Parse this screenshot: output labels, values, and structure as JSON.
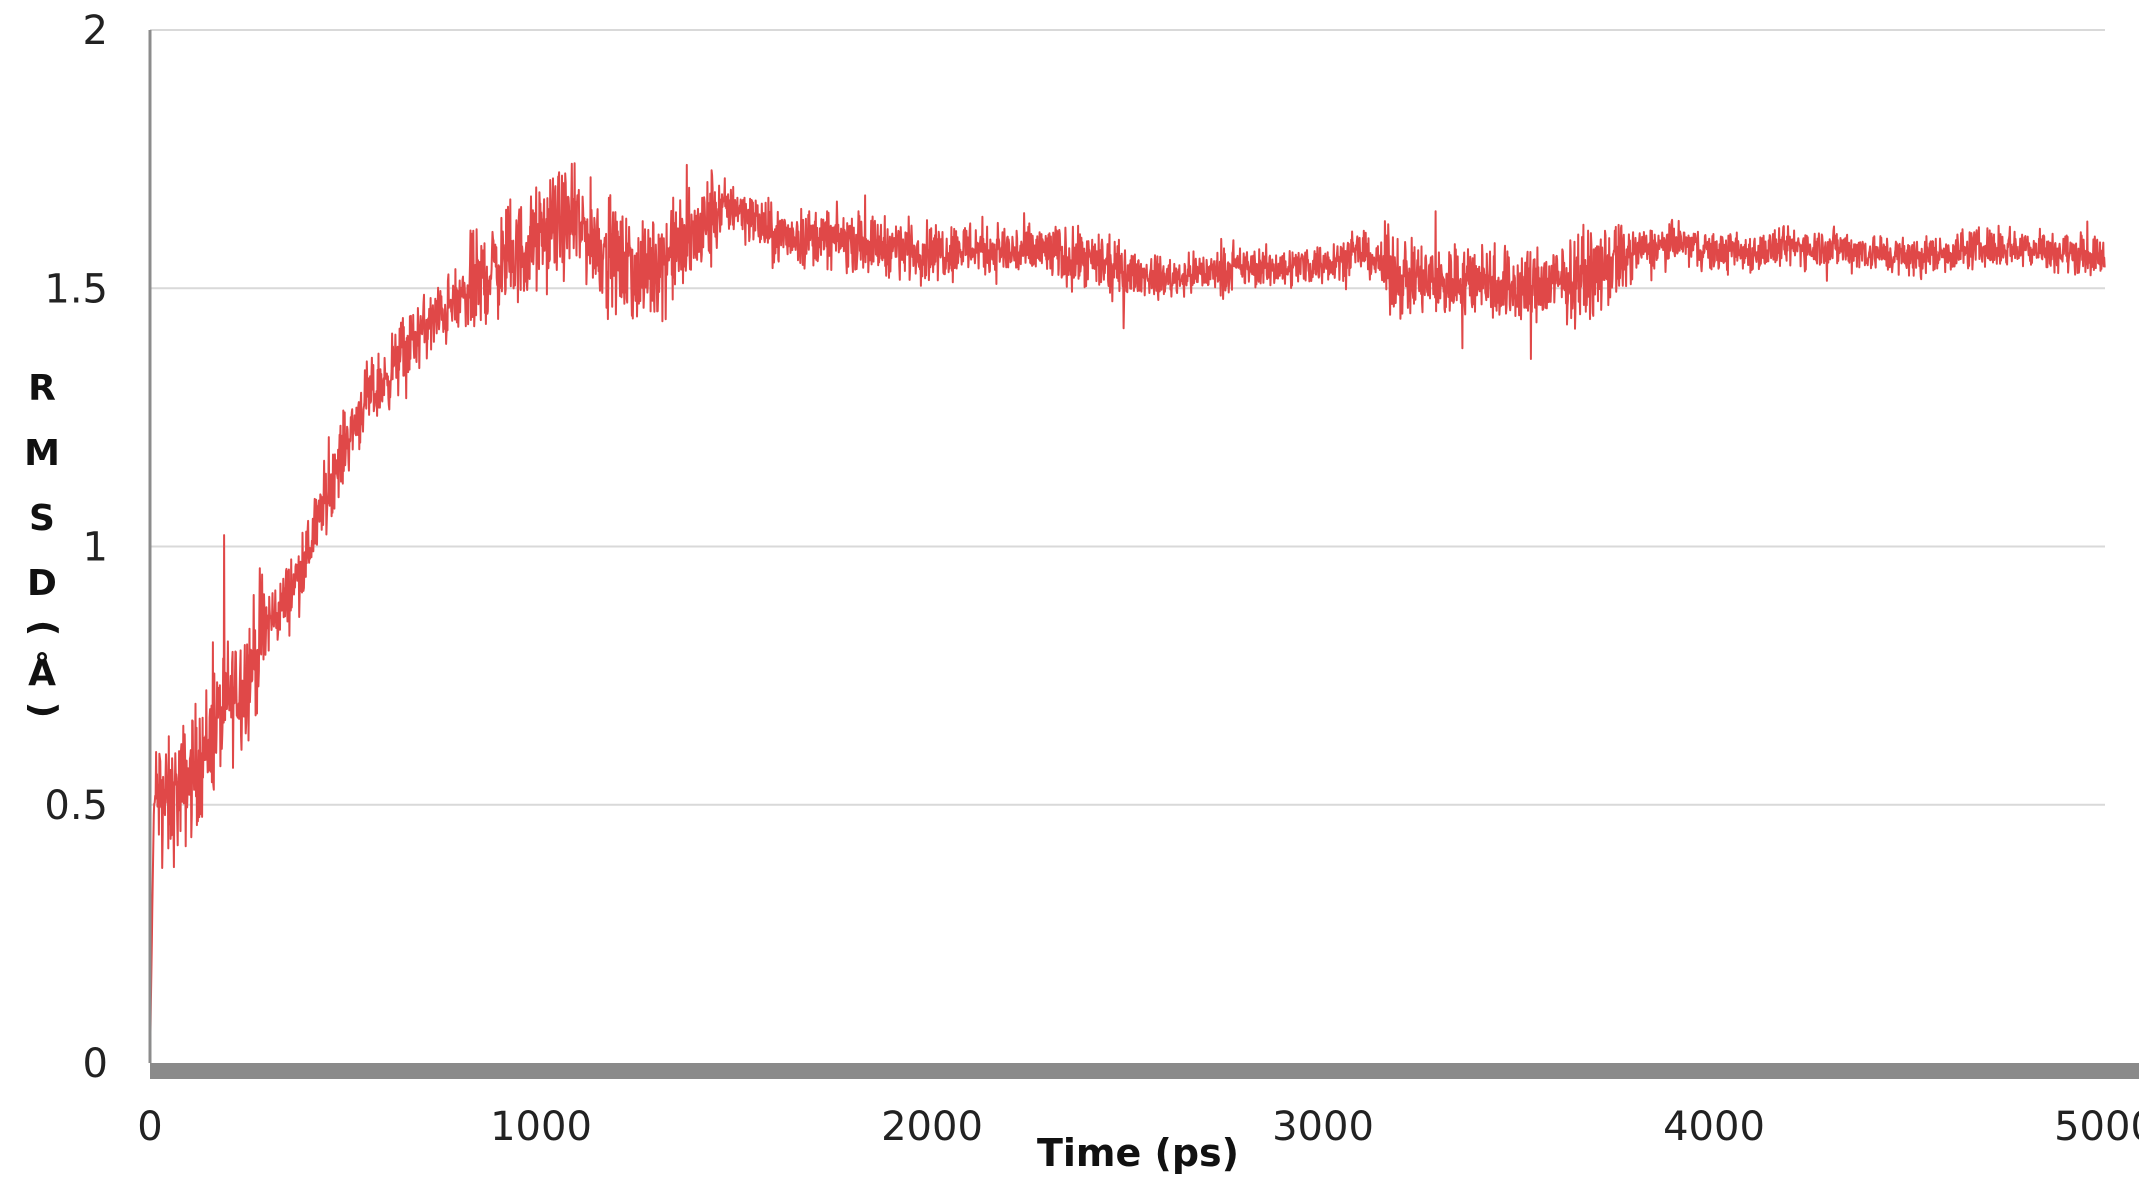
{
  "chart_data": {
    "type": "line",
    "title": "",
    "xlabel": "Time (ps)",
    "ylabel": "RMSD (Å)",
    "ylabel_chars": [
      "R",
      "M",
      "S",
      "D",
      ")",
      "Å",
      "("
    ],
    "xlim": [
      0,
      5000
    ],
    "ylim": [
      0,
      2
    ],
    "x_ticks": [
      "0",
      "1000",
      "2000",
      "3000",
      "4000",
      "5000"
    ],
    "y_ticks": [
      "0",
      "0.5",
      "1",
      "1.5",
      "2"
    ],
    "grid": "horizontal",
    "legend": "none",
    "series": [
      {
        "color": "#e04848",
        "noisy": true,
        "x": [
          0,
          10,
          20,
          50,
          100,
          150,
          200,
          250,
          300,
          350,
          400,
          450,
          500,
          550,
          600,
          650,
          700,
          750,
          800,
          850,
          900,
          950,
          1000,
          1050,
          1100,
          1150,
          1200,
          1250,
          1300,
          1350,
          1400,
          1450,
          1500,
          1550,
          1600,
          1700,
          1800,
          1900,
          2000,
          2100,
          2200,
          2300,
          2400,
          2500,
          2600,
          2700,
          2800,
          2900,
          3000,
          3100,
          3200,
          3300,
          3400,
          3500,
          3600,
          3700,
          3800,
          3900,
          4000,
          4100,
          4200,
          4300,
          4400,
          4500,
          4600,
          4700,
          4800,
          4900,
          5000
        ],
        "y": [
          0.0,
          0.5,
          0.52,
          0.5,
          0.55,
          0.62,
          0.7,
          0.75,
          0.85,
          0.9,
          0.98,
          1.1,
          1.2,
          1.28,
          1.32,
          1.38,
          1.42,
          1.45,
          1.48,
          1.52,
          1.55,
          1.57,
          1.6,
          1.63,
          1.62,
          1.58,
          1.55,
          1.52,
          1.55,
          1.58,
          1.6,
          1.65,
          1.66,
          1.63,
          1.6,
          1.6,
          1.59,
          1.58,
          1.57,
          1.58,
          1.57,
          1.57,
          1.55,
          1.53,
          1.52,
          1.53,
          1.54,
          1.54,
          1.55,
          1.57,
          1.52,
          1.51,
          1.52,
          1.5,
          1.51,
          1.53,
          1.57,
          1.59,
          1.57,
          1.57,
          1.58,
          1.58,
          1.57,
          1.56,
          1.57,
          1.58,
          1.58,
          1.57,
          1.56
        ]
      }
    ]
  }
}
